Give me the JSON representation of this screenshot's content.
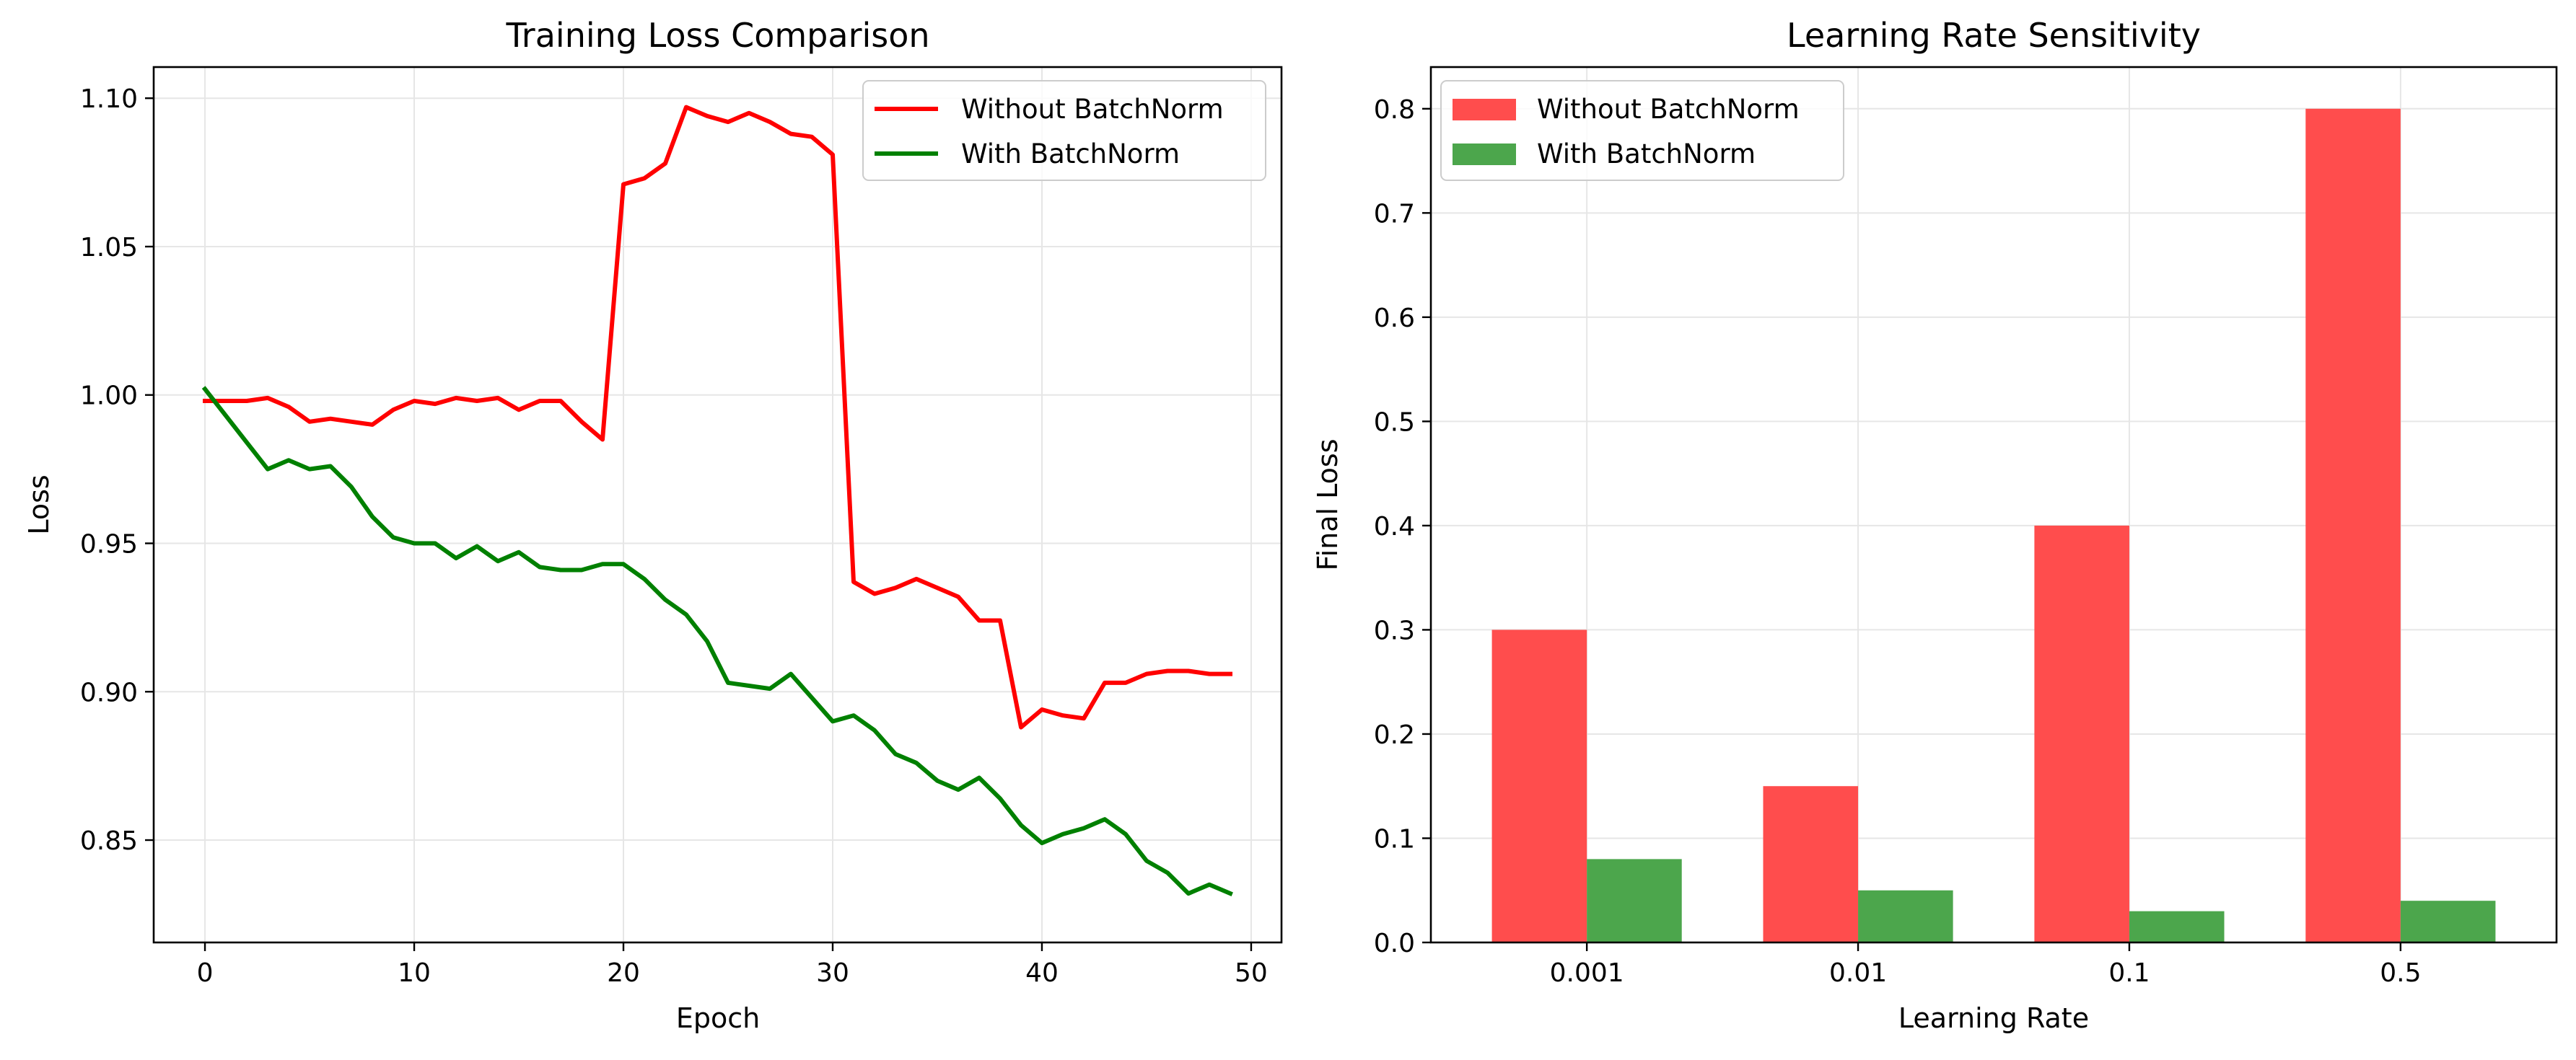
{
  "colors": {
    "without": "#ff0000",
    "with": "#008000",
    "bar_without": "#ff4d4d",
    "bar_with": "#4ca64c",
    "grid": "#e6e6e6",
    "axes": "#000000"
  },
  "chart_data": [
    {
      "type": "line",
      "title": "Training Loss Comparison",
      "xlabel": "Epoch",
      "ylabel": "Loss",
      "xlim": [
        -2.45,
        51.45
      ],
      "ylim": [
        0.8155,
        1.1105
      ],
      "xticks": [
        0,
        10,
        20,
        30,
        40,
        50
      ],
      "xtick_labels": [
        "0",
        "10",
        "20",
        "30",
        "40",
        "50"
      ],
      "yticks": [
        0.85,
        0.9,
        0.95,
        1.0,
        1.05,
        1.1
      ],
      "ytick_labels": [
        "0.85",
        "0.90",
        "0.95",
        "1.00",
        "1.05",
        "1.10"
      ],
      "grid": true,
      "legend_position": "upper right",
      "series": [
        {
          "name": "Without BatchNorm",
          "color": "#ff0000",
          "x": [
            0,
            1,
            2,
            3,
            4,
            5,
            6,
            7,
            8,
            9,
            10,
            11,
            12,
            13,
            14,
            15,
            16,
            17,
            18,
            19,
            20,
            21,
            22,
            23,
            24,
            25,
            26,
            27,
            28,
            29,
            30,
            31,
            32,
            33,
            34,
            35,
            36,
            37,
            38,
            39,
            40,
            41,
            42,
            43,
            44,
            45,
            46,
            47,
            48,
            49
          ],
          "values": [
            0.998,
            0.998,
            0.998,
            0.999,
            0.996,
            0.991,
            0.992,
            0.991,
            0.99,
            0.995,
            0.998,
            0.997,
            0.999,
            0.998,
            0.999,
            0.995,
            0.998,
            0.998,
            0.991,
            0.985,
            1.071,
            1.073,
            1.078,
            1.097,
            1.094,
            1.092,
            1.095,
            1.092,
            1.088,
            1.087,
            1.081,
            0.937,
            0.933,
            0.935,
            0.938,
            0.935,
            0.932,
            0.924,
            0.924,
            0.888,
            0.894,
            0.892,
            0.891,
            0.903,
            0.903,
            0.906,
            0.907,
            0.907,
            0.906,
            0.906
          ]
        },
        {
          "name": "With BatchNorm",
          "color": "#008000",
          "x": [
            0,
            1,
            2,
            3,
            4,
            5,
            6,
            7,
            8,
            9,
            10,
            11,
            12,
            13,
            14,
            15,
            16,
            17,
            18,
            19,
            20,
            21,
            22,
            23,
            24,
            25,
            26,
            27,
            28,
            29,
            30,
            31,
            32,
            33,
            34,
            35,
            36,
            37,
            38,
            39,
            40,
            41,
            42,
            43,
            44,
            45,
            46,
            47,
            48,
            49
          ],
          "values": [
            1.002,
            0.993,
            0.984,
            0.975,
            0.978,
            0.975,
            0.976,
            0.969,
            0.959,
            0.952,
            0.95,
            0.95,
            0.945,
            0.949,
            0.944,
            0.947,
            0.942,
            0.941,
            0.941,
            0.943,
            0.943,
            0.938,
            0.931,
            0.926,
            0.917,
            0.903,
            0.902,
            0.901,
            0.906,
            0.898,
            0.89,
            0.892,
            0.887,
            0.879,
            0.876,
            0.87,
            0.867,
            0.871,
            0.864,
            0.855,
            0.849,
            0.852,
            0.854,
            0.857,
            0.852,
            0.843,
            0.839,
            0.832,
            0.835,
            0.832
          ]
        }
      ]
    },
    {
      "type": "bar",
      "title": "Learning Rate Sensitivity",
      "xlabel": "Learning Rate",
      "ylabel": "Final Loss",
      "categories": [
        "0.001",
        "0.01",
        "0.1",
        "0.5"
      ],
      "ylim": [
        0,
        0.84
      ],
      "yticks": [
        0.0,
        0.1,
        0.2,
        0.3,
        0.4,
        0.5,
        0.6,
        0.7,
        0.8
      ],
      "ytick_labels": [
        "0.0",
        "0.1",
        "0.2",
        "0.3",
        "0.4",
        "0.5",
        "0.6",
        "0.7",
        "0.8"
      ],
      "grid": true,
      "legend_position": "upper left",
      "series": [
        {
          "name": "Without BatchNorm",
          "color": "#ff4d4d",
          "values": [
            0.3,
            0.15,
            0.4,
            0.8
          ]
        },
        {
          "name": "With BatchNorm",
          "color": "#4ca64c",
          "values": [
            0.08,
            0.05,
            0.03,
            0.04
          ]
        }
      ]
    }
  ]
}
